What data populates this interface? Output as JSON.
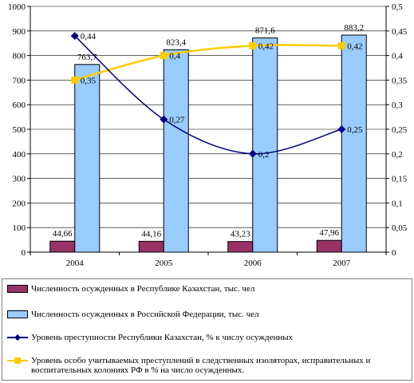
{
  "chart_data": {
    "type": "bar",
    "categories": [
      "2004",
      "2005",
      "2006",
      "2007"
    ],
    "left_axis": {
      "ylim": [
        0,
        1000
      ],
      "ticks": [
        0,
        100,
        200,
        300,
        400,
        500,
        600,
        700,
        800,
        900,
        1000
      ],
      "tick_labels": [
        "0",
        "100",
        "200",
        "300",
        "400",
        "500",
        "600",
        "700",
        "800",
        "900",
        "1000"
      ]
    },
    "right_axis": {
      "ylim": [
        0,
        0.5
      ],
      "ticks": [
        0,
        0.05,
        0.1,
        0.15,
        0.2,
        0.25,
        0.3,
        0.35,
        0.4,
        0.45,
        0.5
      ],
      "tick_labels": [
        "0",
        "0,05",
        "0,1",
        "0,15",
        "0,2",
        "0,25",
        "0,3",
        "0,35",
        "0,4",
        "0,45",
        "0,5"
      ]
    },
    "grid": true,
    "legend_position": "bottom",
    "series": [
      {
        "name": "Численность осужденных в Республике Казахстан, тыс. чел",
        "type": "bar",
        "axis": "left",
        "values": [
          44.66,
          44.16,
          43.23,
          47.96
        ],
        "labels": [
          "44,66",
          "44,16",
          "43,23",
          "47,96"
        ],
        "color": "#993366"
      },
      {
        "name": "Численность осужденных в Российской Федерации, тыс. чел",
        "type": "bar",
        "axis": "left",
        "values": [
          763.7,
          823.4,
          871.6,
          883.2
        ],
        "labels": [
          "763,7",
          "823,4",
          "871,6",
          "883,2"
        ],
        "color": "#99CCFF"
      },
      {
        "name": "Уровень преступности Республики Казахстан, % к числу осужденных",
        "type": "line",
        "smooth": true,
        "axis": "right",
        "values": [
          0.44,
          0.27,
          0.2,
          0.25
        ],
        "labels": [
          "0,44",
          "0,27",
          "0,2",
          "0,25"
        ],
        "color": "#000080",
        "marker": "diamond"
      },
      {
        "name": "Уровень особо учитываемых преступлений в следственных изоляторах, исправительных и воспитательных колониях РФ в % на число осужденных.",
        "type": "line",
        "smooth": true,
        "axis": "right",
        "values": [
          0.35,
          0.4,
          0.42,
          0.42
        ],
        "labels": [
          "0,35",
          "0,4",
          "0,42",
          "0,42"
        ],
        "color": "#FFCC00",
        "marker": "square"
      }
    ]
  }
}
